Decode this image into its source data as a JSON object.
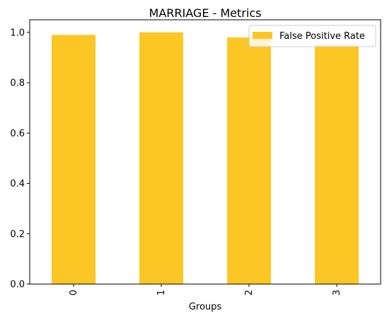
{
  "chart_data": {
    "type": "bar",
    "title": "MARRIAGE - Metrics",
    "xlabel": "Groups",
    "ylabel": "",
    "categories": [
      "0",
      "1",
      "2",
      "3"
    ],
    "series": [
      {
        "name": "False Positive Rate",
        "values": [
          0.99,
          1.0,
          0.98,
          0.95
        ],
        "color": "#fcc624"
      }
    ],
    "ylim": [
      0,
      1.05
    ],
    "yticks": [
      0.0,
      0.2,
      0.4,
      0.6,
      0.8,
      1.0
    ],
    "ytick_labels": [
      "0.0",
      "0.2",
      "0.4",
      "0.6",
      "0.8",
      "1.0"
    ],
    "grid": false,
    "legend_position": "top-right"
  }
}
